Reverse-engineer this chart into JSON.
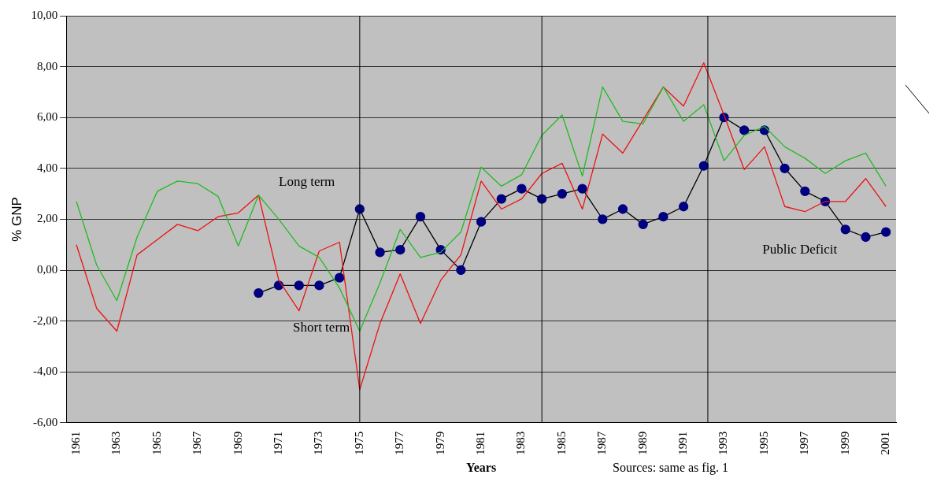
{
  "chart_data": {
    "type": "line",
    "xlabel": "Years",
    "ylabel": "% GNP",
    "x": [
      1961,
      1962,
      1963,
      1964,
      1965,
      1966,
      1967,
      1968,
      1969,
      1970,
      1971,
      1972,
      1973,
      1974,
      1975,
      1976,
      1977,
      1978,
      1979,
      1980,
      1981,
      1982,
      1983,
      1984,
      1985,
      1986,
      1987,
      1988,
      1989,
      1990,
      1991,
      1992,
      1993,
      1994,
      1995,
      1996,
      1997,
      1998,
      1999,
      2000,
      2001
    ],
    "xlim": [
      1960.5,
      2001.5
    ],
    "xticks": [
      1961,
      1963,
      1965,
      1967,
      1969,
      1971,
      1973,
      1975,
      1977,
      1979,
      1981,
      1983,
      1985,
      1987,
      1989,
      1991,
      1993,
      1995,
      1997,
      1999,
      2001
    ],
    "ylim": [
      -6,
      10
    ],
    "yticks": [
      {
        "value": -6,
        "label": "-6,00"
      },
      {
        "value": -4,
        "label": "-4,00"
      },
      {
        "value": -2,
        "label": "-2,00"
      },
      {
        "value": 0,
        "label": "0,00"
      },
      {
        "value": 2,
        "label": "2,00"
      },
      {
        "value": 4,
        "label": "4,00"
      },
      {
        "value": 6,
        "label": "6,00"
      },
      {
        "value": 8,
        "label": "8,00"
      },
      {
        "value": 10,
        "label": "10,00"
      }
    ],
    "grid": "y",
    "legend": false,
    "marker": "none",
    "line_style": "solid",
    "series": [
      {
        "name": "Long term",
        "color": "#22bb22",
        "values": [
          2.7,
          0.2,
          -1.2,
          1.3,
          3.1,
          3.5,
          3.4,
          2.9,
          0.95,
          2.95,
          2.0,
          0.95,
          0.5,
          -0.7,
          -2.4,
          -0.5,
          1.6,
          0.5,
          0.7,
          1.5,
          4.05,
          3.3,
          3.75,
          5.3,
          6.1,
          3.7,
          7.2,
          5.85,
          5.75,
          7.2,
          5.85,
          6.5,
          4.3,
          5.3,
          5.65,
          4.85,
          4.4,
          3.8,
          4.3,
          4.6,
          3.3
        ]
      },
      {
        "name": "Short term",
        "color": "#ee1111",
        "values": [
          1.0,
          -1.5,
          -2.4,
          0.6,
          1.2,
          1.8,
          1.55,
          2.1,
          2.25,
          2.95,
          -0.4,
          -1.6,
          0.75,
          1.1,
          -4.7,
          -2.1,
          -0.15,
          -2.1,
          -0.4,
          0.6,
          3.5,
          2.4,
          2.8,
          3.8,
          4.2,
          2.4,
          5.35,
          4.6,
          5.9,
          7.2,
          6.45,
          8.15,
          6.1,
          3.95,
          4.85,
          2.5,
          2.3,
          2.7,
          2.7,
          3.6,
          2.5
        ]
      },
      {
        "name": "Public Deficit",
        "color": "#000080",
        "marker": "circle",
        "values": [
          null,
          null,
          null,
          null,
          null,
          null,
          null,
          null,
          null,
          -0.9,
          -0.6,
          -0.6,
          -0.6,
          -0.3,
          2.4,
          0.7,
          0.8,
          2.1,
          0.8,
          0.0,
          1.9,
          2.8,
          3.2,
          2.8,
          3.0,
          3.2,
          2.0,
          2.4,
          1.8,
          2.1,
          2.5,
          4.1,
          6.0,
          5.5,
          5.5,
          4.0,
          3.1,
          2.7,
          1.6,
          1.3,
          1.5
        ]
      }
    ],
    "ref_lines": [
      {
        "axis": "x",
        "value": 1975,
        "color": "#000000"
      },
      {
        "axis": "x",
        "value": 1984,
        "color": "#000000"
      },
      {
        "axis": "x",
        "value": 1992.2,
        "color": "#000000"
      }
    ],
    "annotations": [
      "Sources: same as fig. 1"
    ]
  }
}
